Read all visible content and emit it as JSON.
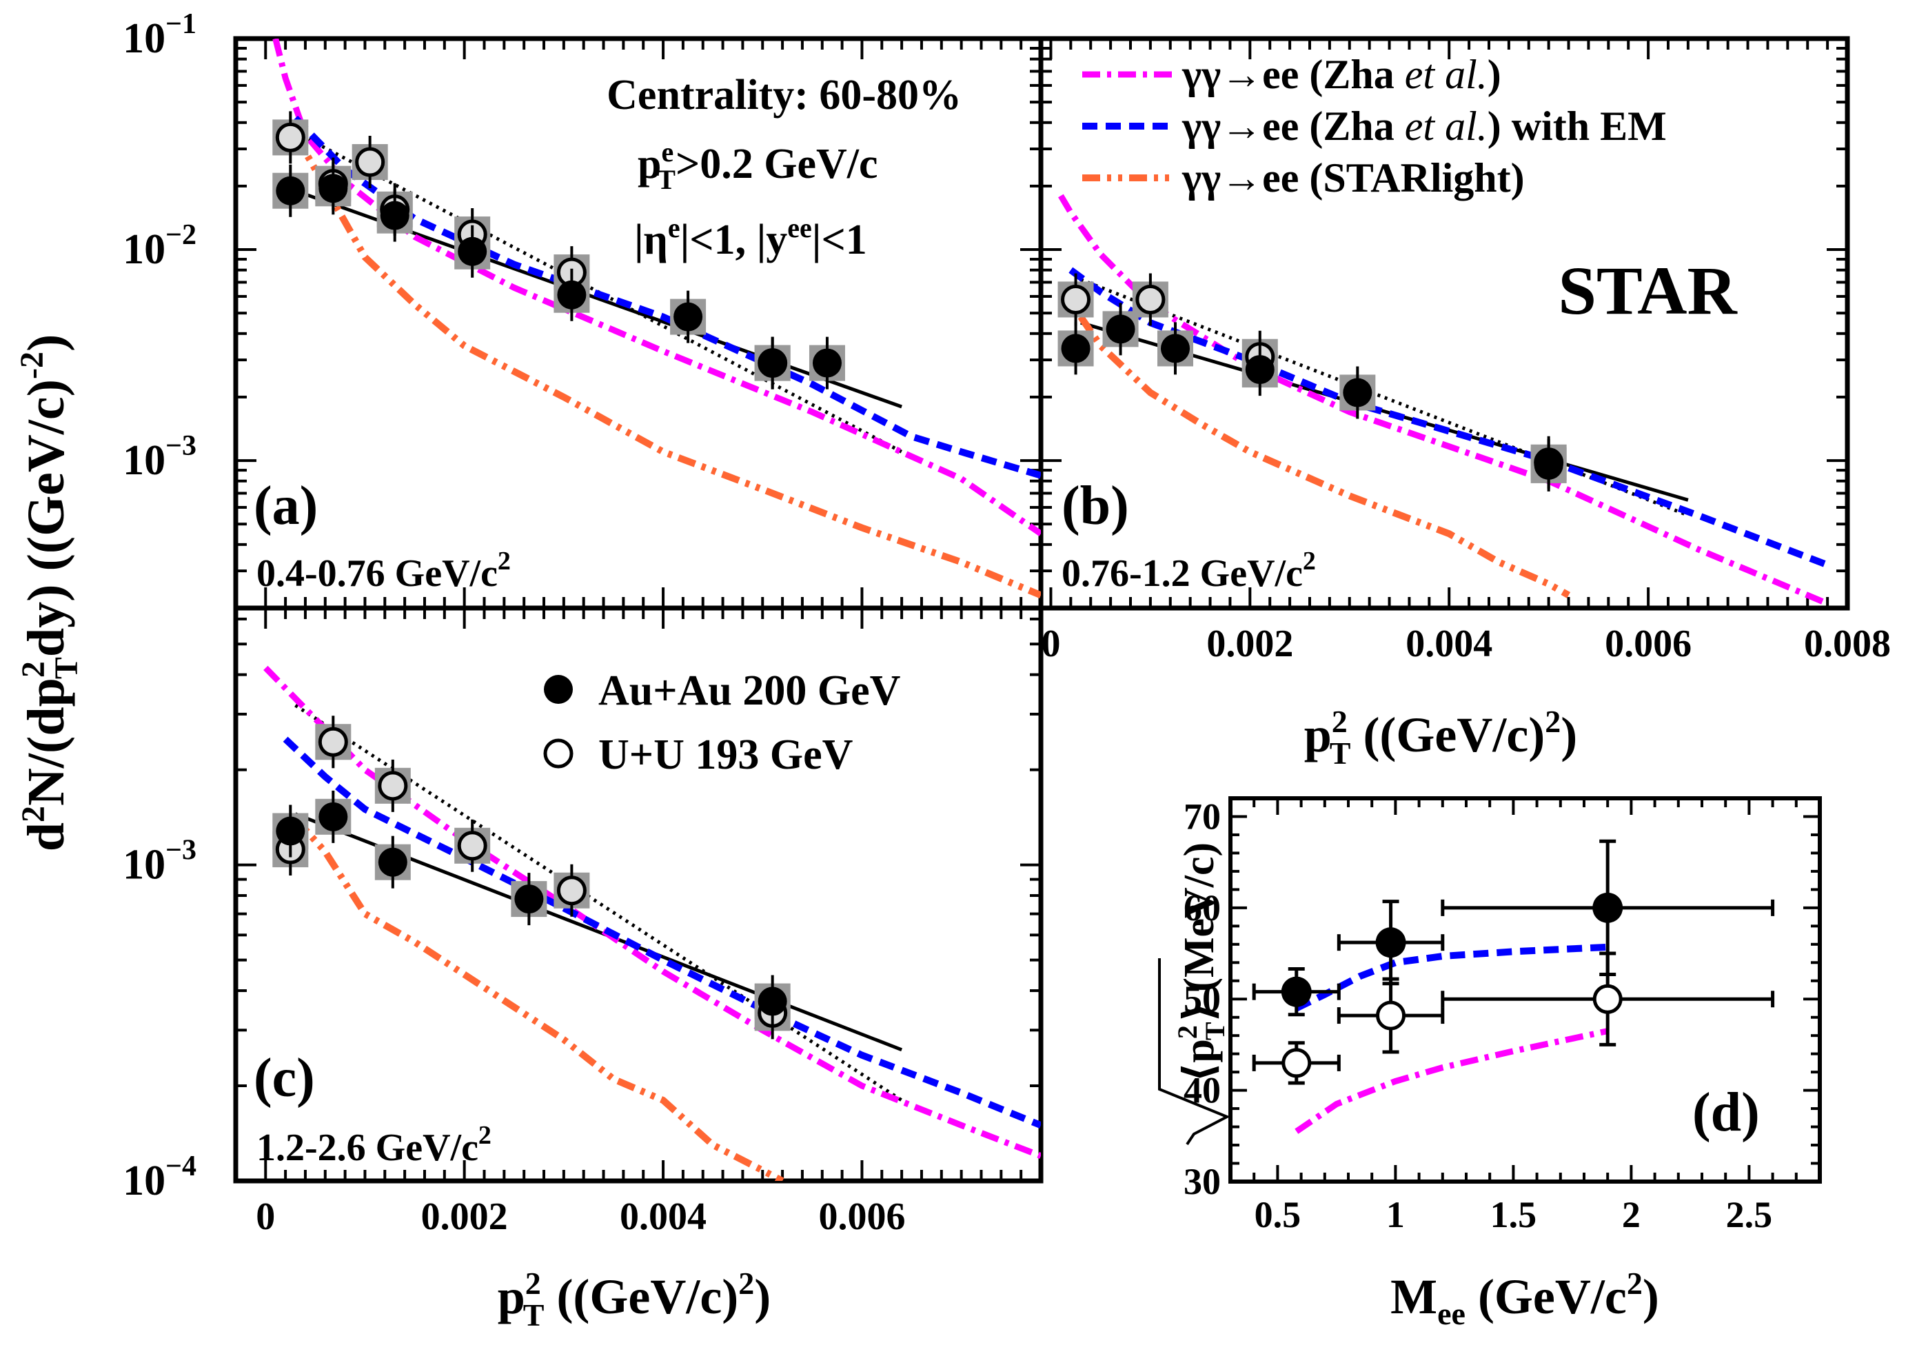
{
  "figure": {
    "y_axis_title_parts": [
      "d",
      "2",
      "N/(dp",
      "2",
      "T",
      "dy) ((GeV/c)",
      "-2",
      ")"
    ],
    "x_axis_title_parts": [
      "p",
      "2",
      "T",
      " ((GeV/c)",
      "2",
      ")"
    ],
    "star_label": "STAR",
    "centrality": "Centrality: 60-80%",
    "cut_pt_parts": [
      "p",
      "e",
      "T",
      ">0.2 GeV/c"
    ],
    "cut_eta_parts": [
      "|η",
      "e",
      "|<1, |y",
      "ee",
      "|<1"
    ],
    "legend_models": [
      {
        "pre": "γγ→ee (Zha ",
        "ital": "et al.",
        "post": ")"
      },
      {
        "pre": "γγ→ee (Zha ",
        "ital": "et al.",
        "post": ") with EM"
      },
      {
        "pre": "γγ→ee (STARlight)",
        "ital": "",
        "post": ""
      }
    ],
    "legend_data": [
      "Au+Au 200 GeV",
      "U+U 193 GeV"
    ],
    "colors": {
      "zha": "#ff00ff",
      "zha_em": "#0000ff",
      "starlight": "#ff6633",
      "gray_box": "#999999"
    }
  },
  "chart_data": [
    {
      "panel": "(a)",
      "type": "scatter",
      "mass_range_parts": [
        "0.4-0.76 GeV/c",
        "2"
      ],
      "xlim": [
        -0.0003,
        0.0078
      ],
      "ylim": [
        0.0002,
        0.1
      ],
      "yscale": "log",
      "y_ticks": [
        {
          "v": 0.1,
          "m": "10",
          "e": "−1"
        },
        {
          "v": 0.01,
          "m": "10",
          "e": "−2"
        },
        {
          "v": 0.001,
          "m": "10",
          "e": "−3"
        }
      ],
      "series": [
        {
          "name": "Au+Au 200 GeV",
          "x": [
            0.00025,
            0.00068,
            0.0013,
            0.00208,
            0.00308,
            0.00425,
            0.0051,
            0.00565
          ],
          "y": [
            0.019,
            0.0195,
            0.0145,
            0.0098,
            0.0061,
            0.0048,
            0.0029,
            0.0029
          ]
        },
        {
          "name": "U+U 193 GeV",
          "x": [
            0.00025,
            0.00068,
            0.00105,
            0.0013,
            0.00208,
            0.00308,
            0.0051
          ],
          "y": [
            0.034,
            0.0205,
            0.026,
            0.0155,
            0.0118,
            0.0078,
            0.0029
          ]
        },
        {
          "name": "fit Au+Au",
          "x": [
            0.0003,
            0.0064
          ],
          "y": [
            0.019,
            0.0018
          ]
        },
        {
          "name": "fit U+U",
          "x": [
            0.0003,
            0.0064
          ],
          "y": [
            0.036,
            0.0011
          ]
        },
        {
          "name": "Zha et al.",
          "x": [
            0.0001,
            0.0002,
            0.0004,
            0.0008,
            0.0015,
            0.0025,
            0.004,
            0.0055,
            0.007,
            0.0078
          ],
          "y": [
            0.1,
            0.065,
            0.035,
            0.021,
            0.0115,
            0.0066,
            0.0033,
            0.0017,
            0.00082,
            0.00045
          ]
        },
        {
          "name": "Zha et al. with EM",
          "x": [
            0.0003,
            0.0008,
            0.0015,
            0.0025,
            0.004,
            0.0055,
            0.0065,
            0.007,
            0.0078
          ],
          "y": [
            0.042,
            0.024,
            0.014,
            0.0085,
            0.0048,
            0.0023,
            0.0013,
            0.0011,
            0.00085
          ]
        },
        {
          "name": "STARlight",
          "x": [
            0.0003,
            0.0005,
            0.001,
            0.0015,
            0.002,
            0.003,
            0.004,
            0.005,
            0.006,
            0.007,
            0.0078
          ],
          "y": [
            0.035,
            0.024,
            0.0092,
            0.0055,
            0.0035,
            0.002,
            0.0011,
            0.00073,
            0.00048,
            0.00033,
            0.00023
          ]
        }
      ]
    },
    {
      "panel": "(b)",
      "type": "scatter",
      "mass_range_parts": [
        "0.76-1.2 GeV/c",
        "2"
      ],
      "xlim": [
        -0.0001,
        0.008
      ],
      "ylim": [
        0.0002,
        0.1
      ],
      "yscale": "log",
      "x_ticks": [
        "0",
        "0.002",
        "0.004",
        "0.006",
        "0.008"
      ],
      "series": [
        {
          "name": "Au+Au 200 GeV",
          "x": [
            0.00025,
            0.0007,
            0.00125,
            0.0021,
            0.00308,
            0.005
          ],
          "y": [
            0.0034,
            0.0042,
            0.0034,
            0.0027,
            0.0021,
            0.00095
          ]
        },
        {
          "name": "U+U 193 GeV",
          "x": [
            0.00025,
            0.001,
            0.0021,
            0.005
          ],
          "y": [
            0.0058,
            0.0058,
            0.0031,
            0.00098
          ]
        },
        {
          "name": "fit Au+Au",
          "x": [
            0.0003,
            0.0064
          ],
          "y": [
            0.0045,
            0.00065
          ]
        },
        {
          "name": "fit U+U",
          "x": [
            0.0003,
            0.0064
          ],
          "y": [
            0.0072,
            0.00055
          ]
        },
        {
          "name": "Zha et al.",
          "x": [
            0.0001,
            0.0002,
            0.0005,
            0.001,
            0.002,
            0.003,
            0.005,
            0.0065,
            0.0078
          ],
          "y": [
            0.018,
            0.015,
            0.0095,
            0.0055,
            0.0028,
            0.0017,
            0.0008,
            0.00038,
            0.00021
          ]
        },
        {
          "name": "Zha et al. with EM",
          "x": [
            0.0002,
            0.0005,
            0.001,
            0.002,
            0.003,
            0.005,
            0.0065,
            0.0078
          ],
          "y": [
            0.008,
            0.0063,
            0.0045,
            0.003,
            0.0019,
            0.001,
            0.00055,
            0.00032
          ]
        },
        {
          "name": "STARlight",
          "x": [
            0.0003,
            0.0005,
            0.001,
            0.0015,
            0.002,
            0.003,
            0.004,
            0.0045,
            0.005,
            0.0052
          ],
          "y": [
            0.0048,
            0.0035,
            0.0021,
            0.0015,
            0.0011,
            0.00068,
            0.00045,
            0.00033,
            0.00026,
            0.00023
          ]
        }
      ]
    },
    {
      "panel": "(c)",
      "type": "scatter",
      "mass_range_parts": [
        "1.2-2.6 GeV/c",
        "2"
      ],
      "xlim": [
        -0.0003,
        0.0078
      ],
      "ylim": [
        0.0001,
        0.0065
      ],
      "yscale": "log",
      "x_ticks": [
        "0",
        "0.002",
        "0.004",
        "0.006"
      ],
      "y_ticks": [
        {
          "v": 0.001,
          "m": "10",
          "e": "−3"
        },
        {
          "v": 0.0001,
          "m": "10",
          "e": "−4"
        }
      ],
      "series": [
        {
          "name": "Au+Au 200 GeV",
          "x": [
            0.00025,
            0.00068,
            0.00128,
            0.00265,
            0.0051
          ],
          "y": [
            0.00128,
            0.00142,
            0.00102,
            0.00078,
            0.00037
          ]
        },
        {
          "name": "U+U 193 GeV",
          "x": [
            0.00025,
            0.00068,
            0.00128,
            0.00208,
            0.00308,
            0.0051
          ],
          "y": [
            0.00112,
            0.00245,
            0.00178,
            0.00115,
            0.00083,
            0.00034
          ]
        },
        {
          "name": "fit Au+Au",
          "x": [
            0.0003,
            0.0064
          ],
          "y": [
            0.00145,
            0.00026
          ]
        },
        {
          "name": "fit U+U",
          "x": [
            0.0003,
            0.0064
          ],
          "y": [
            0.0032,
            0.00018
          ]
        },
        {
          "name": "Zha et al.",
          "x": [
            0.0,
            0.0005,
            0.001,
            0.002,
            0.003,
            0.004,
            0.005,
            0.006,
            0.007,
            0.0078
          ],
          "y": [
            0.0042,
            0.0029,
            0.002,
            0.0012,
            0.00075,
            0.00046,
            0.0003,
            0.0002,
            0.00015,
            0.00012
          ]
        },
        {
          "name": "Zha et al. with EM",
          "x": [
            0.0002,
            0.0006,
            0.001,
            0.002,
            0.003,
            0.004,
            0.005,
            0.006,
            0.007,
            0.0078
          ],
          "y": [
            0.0025,
            0.0019,
            0.0015,
            0.00105,
            0.00073,
            0.0005,
            0.00035,
            0.00025,
            0.00019,
            0.00015
          ]
        },
        {
          "name": "STARlight",
          "x": [
            0.0003,
            0.0006,
            0.001,
            0.0015,
            0.002,
            0.003,
            0.0035,
            0.004,
            0.0045,
            0.005,
            0.0052
          ],
          "y": [
            0.0014,
            0.0011,
            0.0007,
            0.00057,
            0.00045,
            0.00028,
            0.00021,
            0.00018,
            0.00013,
            0.000108,
            0.0001
          ]
        }
      ]
    },
    {
      "panel": "(d)",
      "type": "scatter",
      "xlabel": "Mee (GeV/c²)",
      "ylabel": "√⟨pT²⟩ (MeV/c)",
      "xlabel_parts": [
        "M",
        "ee",
        " (GeV/c",
        "2",
        ")"
      ],
      "ylabel_parts": [
        "⟨p",
        "2",
        "T",
        "⟩ (MeV/c)"
      ],
      "xlim": [
        0.3,
        2.8
      ],
      "ylim": [
        30,
        72
      ],
      "x_ticks": [
        "0.5",
        "1",
        "1.5",
        "2",
        "2.5"
      ],
      "y_ticks": [
        "30",
        "40",
        "50",
        "60",
        "70"
      ],
      "series": [
        {
          "name": "Au+Au 200 GeV",
          "x": [
            0.58,
            0.98,
            1.9
          ],
          "y": [
            50.8,
            56.2,
            60.0
          ],
          "xerr": [
            [
              0.18,
              0.18
            ],
            [
              0.22,
              0.22
            ],
            [
              0.7,
              0.7
            ]
          ],
          "yerr": [
            2.5,
            4.5,
            7.3
          ]
        },
        {
          "name": "U+U 193 GeV",
          "x": [
            0.58,
            0.98,
            1.9
          ],
          "y": [
            43.0,
            48.2,
            50.0
          ],
          "xerr": [
            [
              0.18,
              0.18
            ],
            [
              0.22,
              0.22
            ],
            [
              0.7,
              0.7
            ]
          ],
          "yerr": [
            2.2,
            4.0,
            5.0
          ]
        },
        {
          "name": "Zha et al. with EM",
          "x": [
            0.58,
            0.7,
            0.85,
            1.0,
            1.2,
            1.5,
            1.9
          ],
          "y": [
            49.0,
            50.5,
            52.5,
            54.0,
            54.7,
            55.2,
            55.7
          ]
        },
        {
          "name": "Zha et al.",
          "x": [
            0.58,
            0.75,
            1.0,
            1.2,
            1.5,
            1.9
          ],
          "y": [
            35.5,
            38.5,
            41.0,
            42.5,
            44.3,
            46.5
          ]
        }
      ]
    }
  ]
}
